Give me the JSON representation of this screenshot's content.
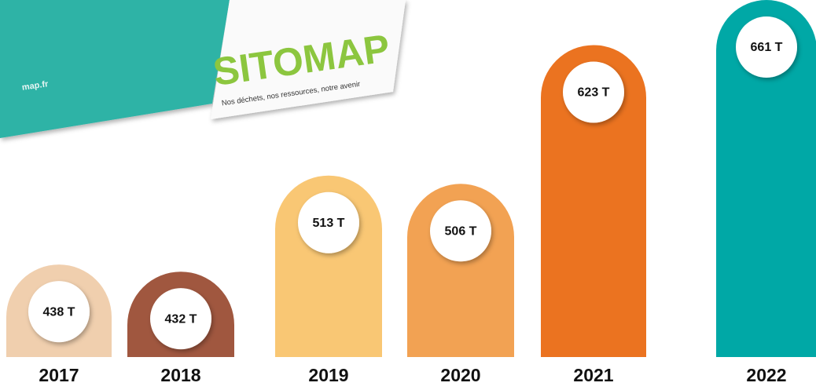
{
  "chart_data": {
    "type": "bar",
    "categories": [
      "2017",
      "2018",
      "2019",
      "2020",
      "2021",
      "2022"
    ],
    "values": [
      438,
      432,
      513,
      506,
      623,
      661
    ],
    "value_labels": [
      "438 T",
      "432 T",
      "513 T",
      "506 T",
      "623 T",
      "661 T"
    ],
    "colors": [
      "#f0cfae",
      "#a0573f",
      "#f9c774",
      "#f2a253",
      "#eb7320",
      "#00a8a6"
    ],
    "ylim": [
      360,
      661
    ]
  },
  "decoration": {
    "logo": "SITOMAP",
    "tagline": "Nos déchets, nos ressources, notre avenir",
    "url": "map.fr"
  }
}
